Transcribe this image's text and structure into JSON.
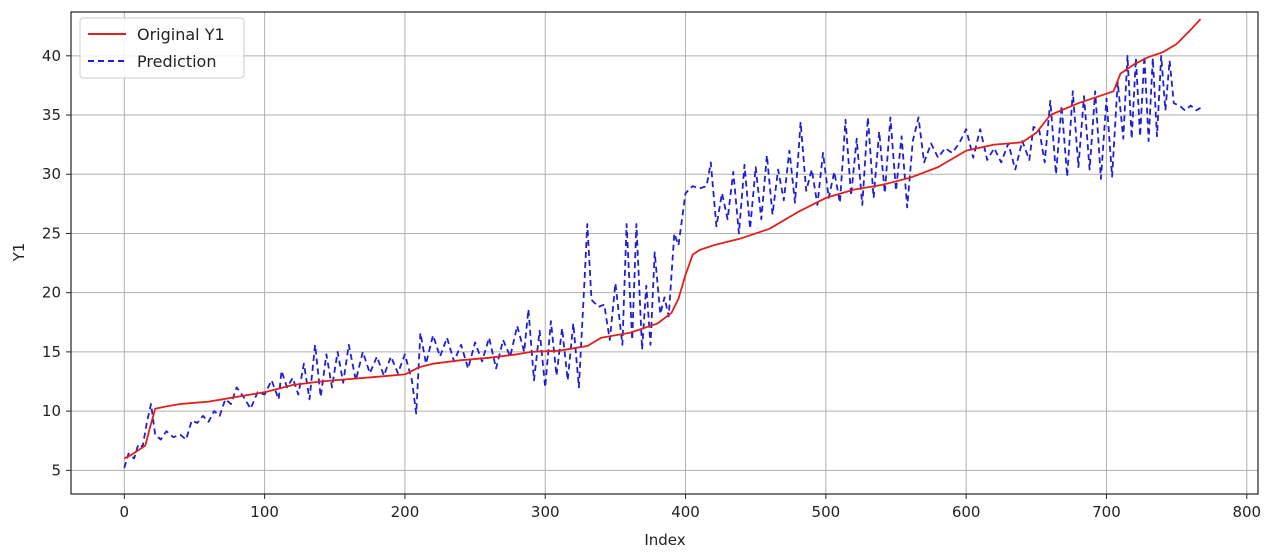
{
  "chart_data": {
    "type": "line",
    "title": "",
    "xlabel": "Index",
    "ylabel": "Y1",
    "xlim": [
      -38,
      808
    ],
    "ylim": [
      3.0,
      43.7
    ],
    "xticks": [
      0,
      100,
      200,
      300,
      400,
      500,
      600,
      700,
      800
    ],
    "yticks": [
      5,
      10,
      15,
      20,
      25,
      30,
      35,
      40
    ],
    "grid": true,
    "legend": "top-left",
    "series": [
      {
        "name": "Original Y1",
        "color": "#e0201b",
        "dash": "solid",
        "points": [
          [
            0,
            6.0
          ],
          [
            5,
            6.3
          ],
          [
            10,
            6.7
          ],
          [
            15,
            7.1
          ],
          [
            18,
            8.5
          ],
          [
            22,
            10.2
          ],
          [
            30,
            10.4
          ],
          [
            40,
            10.6
          ],
          [
            50,
            10.7
          ],
          [
            60,
            10.8
          ],
          [
            70,
            11.0
          ],
          [
            80,
            11.2
          ],
          [
            100,
            11.6
          ],
          [
            120,
            12.2
          ],
          [
            140,
            12.5
          ],
          [
            160,
            12.7
          ],
          [
            180,
            12.9
          ],
          [
            200,
            13.1
          ],
          [
            210,
            13.7
          ],
          [
            220,
            14.0
          ],
          [
            240,
            14.3
          ],
          [
            260,
            14.5
          ],
          [
            280,
            14.8
          ],
          [
            290,
            15.0
          ],
          [
            310,
            15.1
          ],
          [
            330,
            15.5
          ],
          [
            340,
            16.2
          ],
          [
            350,
            16.4
          ],
          [
            360,
            16.6
          ],
          [
            370,
            17.0
          ],
          [
            380,
            17.4
          ],
          [
            390,
            18.3
          ],
          [
            395,
            19.5
          ],
          [
            400,
            21.5
          ],
          [
            405,
            23.2
          ],
          [
            410,
            23.6
          ],
          [
            420,
            24.0
          ],
          [
            440,
            24.6
          ],
          [
            460,
            25.4
          ],
          [
            480,
            26.8
          ],
          [
            500,
            28.0
          ],
          [
            520,
            28.7
          ],
          [
            540,
            29.1
          ],
          [
            560,
            29.7
          ],
          [
            580,
            30.6
          ],
          [
            600,
            32.0
          ],
          [
            620,
            32.5
          ],
          [
            640,
            32.7
          ],
          [
            650,
            33.5
          ],
          [
            660,
            35.0
          ],
          [
            680,
            36.0
          ],
          [
            700,
            36.8
          ],
          [
            705,
            37.0
          ],
          [
            710,
            38.5
          ],
          [
            720,
            39.3
          ],
          [
            730,
            39.9
          ],
          [
            740,
            40.3
          ],
          [
            750,
            41.0
          ],
          [
            760,
            42.2
          ],
          [
            767,
            43.1
          ]
        ]
      },
      {
        "name": "Prediction",
        "color": "#1f1fd1",
        "dash": "dashed",
        "points": [
          [
            0,
            5.2
          ],
          [
            3,
            6.4
          ],
          [
            7,
            6.0
          ],
          [
            10,
            7.2
          ],
          [
            13,
            7.0
          ],
          [
            16,
            9.0
          ],
          [
            19,
            10.6
          ],
          [
            22,
            8.0
          ],
          [
            26,
            7.6
          ],
          [
            30,
            8.3
          ],
          [
            35,
            7.8
          ],
          [
            40,
            8.0
          ],
          [
            44,
            7.6
          ],
          [
            48,
            9.2
          ],
          [
            52,
            9.0
          ],
          [
            56,
            9.6
          ],
          [
            60,
            9.1
          ],
          [
            64,
            10.0
          ],
          [
            68,
            9.6
          ],
          [
            72,
            11.0
          ],
          [
            76,
            10.6
          ],
          [
            80,
            12.0
          ],
          [
            85,
            11.2
          ],
          [
            90,
            10.2
          ],
          [
            95,
            11.6
          ],
          [
            100,
            11.4
          ],
          [
            105,
            12.6
          ],
          [
            110,
            11.0
          ],
          [
            112,
            13.4
          ],
          [
            116,
            12.0
          ],
          [
            120,
            12.8
          ],
          [
            124,
            11.4
          ],
          [
            128,
            14.0
          ],
          [
            132,
            11.0
          ],
          [
            136,
            15.6
          ],
          [
            140,
            11.2
          ],
          [
            144,
            14.8
          ],
          [
            148,
            12.0
          ],
          [
            152,
            15.0
          ],
          [
            156,
            12.4
          ],
          [
            160,
            15.6
          ],
          [
            165,
            12.6
          ],
          [
            170,
            15.0
          ],
          [
            175,
            13.2
          ],
          [
            180,
            14.6
          ],
          [
            185,
            13.0
          ],
          [
            190,
            14.6
          ],
          [
            195,
            13.2
          ],
          [
            200,
            14.8
          ],
          [
            205,
            12.6
          ],
          [
            208,
            9.8
          ],
          [
            211,
            16.6
          ],
          [
            215,
            14.0
          ],
          [
            220,
            16.4
          ],
          [
            225,
            14.6
          ],
          [
            230,
            16.2
          ],
          [
            235,
            14.2
          ],
          [
            240,
            15.6
          ],
          [
            245,
            13.6
          ],
          [
            250,
            15.8
          ],
          [
            255,
            14.2
          ],
          [
            260,
            16.2
          ],
          [
            265,
            13.6
          ],
          [
            270,
            16.0
          ],
          [
            275,
            14.6
          ],
          [
            280,
            17.2
          ],
          [
            285,
            15.0
          ],
          [
            288,
            18.6
          ],
          [
            292,
            12.6
          ],
          [
            296,
            16.8
          ],
          [
            300,
            12.0
          ],
          [
            304,
            17.6
          ],
          [
            308,
            13.0
          ],
          [
            312,
            17.0
          ],
          [
            316,
            12.6
          ],
          [
            320,
            17.4
          ],
          [
            324,
            12.0
          ],
          [
            328,
            21.0
          ],
          [
            330,
            25.8
          ],
          [
            333,
            19.4
          ],
          [
            338,
            18.8
          ],
          [
            342,
            19.0
          ],
          [
            346,
            16.0
          ],
          [
            350,
            20.8
          ],
          [
            355,
            15.6
          ],
          [
            358,
            25.8
          ],
          [
            362,
            16.0
          ],
          [
            365,
            25.8
          ],
          [
            369,
            15.2
          ],
          [
            372,
            20.6
          ],
          [
            375,
            15.6
          ],
          [
            378,
            23.4
          ],
          [
            382,
            18.2
          ],
          [
            385,
            19.6
          ],
          [
            388,
            18.0
          ],
          [
            392,
            25.0
          ],
          [
            395,
            24.0
          ],
          [
            400,
            28.4
          ],
          [
            405,
            29.0
          ],
          [
            410,
            28.8
          ],
          [
            415,
            29.0
          ],
          [
            418,
            31.0
          ],
          [
            422,
            25.6
          ],
          [
            426,
            28.4
          ],
          [
            430,
            26.2
          ],
          [
            434,
            30.2
          ],
          [
            438,
            25.0
          ],
          [
            442,
            30.8
          ],
          [
            446,
            25.4
          ],
          [
            450,
            30.6
          ],
          [
            454,
            26.2
          ],
          [
            458,
            31.6
          ],
          [
            462,
            26.6
          ],
          [
            466,
            30.4
          ],
          [
            470,
            27.8
          ],
          [
            474,
            32.0
          ],
          [
            478,
            27.6
          ],
          [
            482,
            34.4
          ],
          [
            486,
            28.6
          ],
          [
            490,
            30.4
          ],
          [
            494,
            27.4
          ],
          [
            498,
            31.8
          ],
          [
            502,
            28.0
          ],
          [
            506,
            30.2
          ],
          [
            510,
            27.6
          ],
          [
            514,
            34.6
          ],
          [
            518,
            28.2
          ],
          [
            522,
            33.0
          ],
          [
            526,
            27.4
          ],
          [
            530,
            34.8
          ],
          [
            534,
            28.0
          ],
          [
            538,
            33.6
          ],
          [
            542,
            28.4
          ],
          [
            546,
            34.8
          ],
          [
            550,
            28.6
          ],
          [
            554,
            33.2
          ],
          [
            558,
            27.2
          ],
          [
            562,
            32.8
          ],
          [
            566,
            34.8
          ],
          [
            570,
            31.0
          ],
          [
            575,
            32.6
          ],
          [
            580,
            31.4
          ],
          [
            585,
            32.2
          ],
          [
            590,
            31.8
          ],
          [
            595,
            32.6
          ],
          [
            600,
            33.8
          ],
          [
            605,
            31.4
          ],
          [
            610,
            33.8
          ],
          [
            615,
            31.2
          ],
          [
            620,
            32.2
          ],
          [
            625,
            31.0
          ],
          [
            630,
            32.6
          ],
          [
            635,
            30.4
          ],
          [
            640,
            32.8
          ],
          [
            645,
            31.2
          ],
          [
            648,
            34.0
          ],
          [
            652,
            33.8
          ],
          [
            656,
            31.0
          ],
          [
            660,
            36.2
          ],
          [
            664,
            30.0
          ],
          [
            668,
            35.8
          ],
          [
            672,
            29.8
          ],
          [
            676,
            37.0
          ],
          [
            680,
            30.6
          ],
          [
            684,
            36.6
          ],
          [
            688,
            30.4
          ],
          [
            692,
            37.0
          ],
          [
            696,
            29.6
          ],
          [
            700,
            36.4
          ],
          [
            704,
            29.8
          ],
          [
            708,
            37.8
          ],
          [
            712,
            33.0
          ],
          [
            715,
            40.0
          ],
          [
            718,
            33.0
          ],
          [
            721,
            39.8
          ],
          [
            724,
            33.2
          ],
          [
            727,
            40.0
          ],
          [
            730,
            32.8
          ],
          [
            733,
            39.8
          ],
          [
            736,
            33.2
          ],
          [
            739,
            40.0
          ],
          [
            742,
            35.4
          ],
          [
            745,
            39.6
          ],
          [
            748,
            36.0
          ],
          [
            752,
            35.8
          ],
          [
            756,
            35.4
          ],
          [
            760,
            35.8
          ],
          [
            764,
            35.4
          ],
          [
            767,
            35.6
          ]
        ]
      }
    ]
  }
}
